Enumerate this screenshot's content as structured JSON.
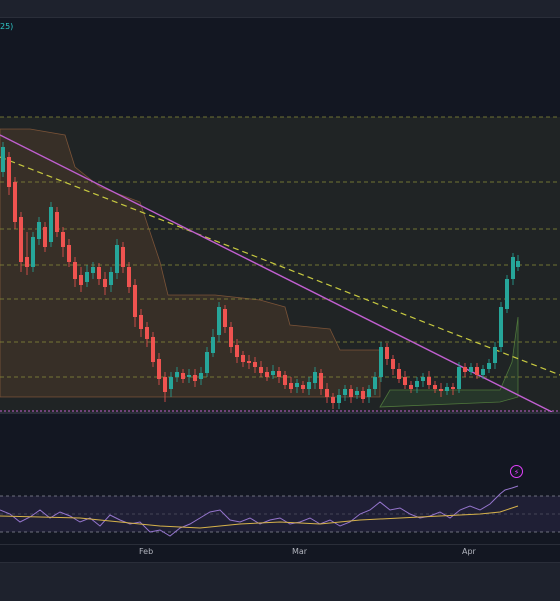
{
  "legend": {
    "text": "25)"
  },
  "time_axis": {
    "labels": [
      "Feb",
      "Mar",
      "Apr"
    ]
  },
  "icons": {
    "alert": "lightning-icon"
  },
  "colors": {
    "background": "#131722",
    "up": "#26a69a",
    "down": "#ef5350",
    "trendline": "#c05fd0",
    "dashed_trend": "#c7c940",
    "rsi": "#7e57c2",
    "rsi_ma": "#d6b24a",
    "level_lines": "#8a8d3a"
  }
}
